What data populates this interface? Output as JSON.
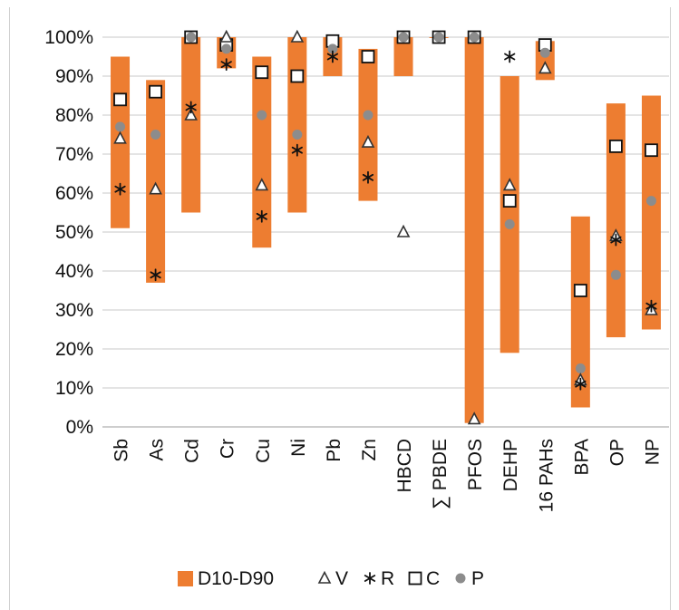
{
  "chart_data": {
    "type": "bar",
    "title": "",
    "xlabel": "",
    "ylabel": "",
    "ylim": [
      0,
      100
    ],
    "y_ticks": [
      0,
      10,
      20,
      30,
      40,
      50,
      60,
      70,
      80,
      90,
      100
    ],
    "y_tick_suffix": "%",
    "grid": "horizontal",
    "legend_position": "bottom",
    "categories": [
      "Sb",
      "As",
      "Cd",
      "Cr",
      "Cu",
      "Ni",
      "Pb",
      "Zn",
      "HBCD",
      "∑ PBDE",
      "PFOS",
      "DEHP",
      "16 PAHs",
      "BPA",
      "OP",
      "NP"
    ],
    "range": {
      "name": "D10-D90",
      "color": "#ED7D31",
      "low": [
        51,
        37,
        55,
        92,
        46,
        55,
        90,
        58,
        90,
        100,
        1,
        19,
        89,
        5,
        23,
        25
      ],
      "high": [
        95,
        89,
        100,
        100,
        95,
        100,
        100,
        97,
        100,
        100,
        100,
        90,
        99,
        54,
        83,
        85
      ]
    },
    "series": [
      {
        "name": "V",
        "marker": "triangle",
        "values": [
          74,
          61,
          80,
          100,
          62,
          100,
          null,
          73,
          50,
          null,
          2,
          62,
          92,
          12,
          49,
          30
        ]
      },
      {
        "name": "R",
        "marker": "asterisk",
        "values": [
          61,
          39,
          82,
          93,
          54,
          71,
          95,
          64,
          null,
          null,
          null,
          95,
          null,
          11,
          48,
          31
        ]
      },
      {
        "name": "C",
        "marker": "square",
        "values": [
          84,
          86,
          100,
          98,
          91,
          90,
          99,
          95,
          100,
          100,
          100,
          58,
          98,
          35,
          72,
          71
        ]
      },
      {
        "name": "P",
        "marker": "circle",
        "color": "#8C8C8C",
        "values": [
          77,
          75,
          100,
          97,
          80,
          75,
          97,
          80,
          100,
          100,
          100,
          52,
          96,
          15,
          39,
          58
        ]
      }
    ]
  }
}
